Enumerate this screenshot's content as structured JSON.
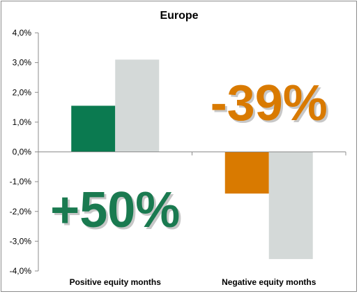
{
  "chart_data": {
    "type": "bar",
    "title": "Europe",
    "categories": [
      "Positive equity months",
      "Negative equity months"
    ],
    "series": [
      {
        "values": [
          1.55,
          -1.4
        ],
        "colors": [
          "#0b7a50",
          "#d97a00"
        ]
      },
      {
        "values": [
          3.1,
          -3.6
        ],
        "colors": [
          "#d4d9d8",
          "#d4d9d8"
        ]
      }
    ],
    "ylim": [
      -4.0,
      4.0
    ],
    "yticks": [
      4.0,
      3.0,
      2.0,
      1.0,
      0.0,
      -1.0,
      -2.0,
      -3.0,
      -4.0
    ],
    "ytick_labels": [
      "4,0%",
      "3,0%",
      "2,0%",
      "1,0%",
      "0,0%",
      "-1,0%",
      "-2,0%",
      "-3,0%",
      "-4,0%"
    ],
    "grid": false,
    "annotations": [
      {
        "text": "+50%",
        "color": "#1a7a50",
        "category": "Positive equity months",
        "position": "below-axis"
      },
      {
        "text": "-39%",
        "color": "#d97a00",
        "category": "Negative equity months",
        "position": "above-axis"
      }
    ]
  }
}
